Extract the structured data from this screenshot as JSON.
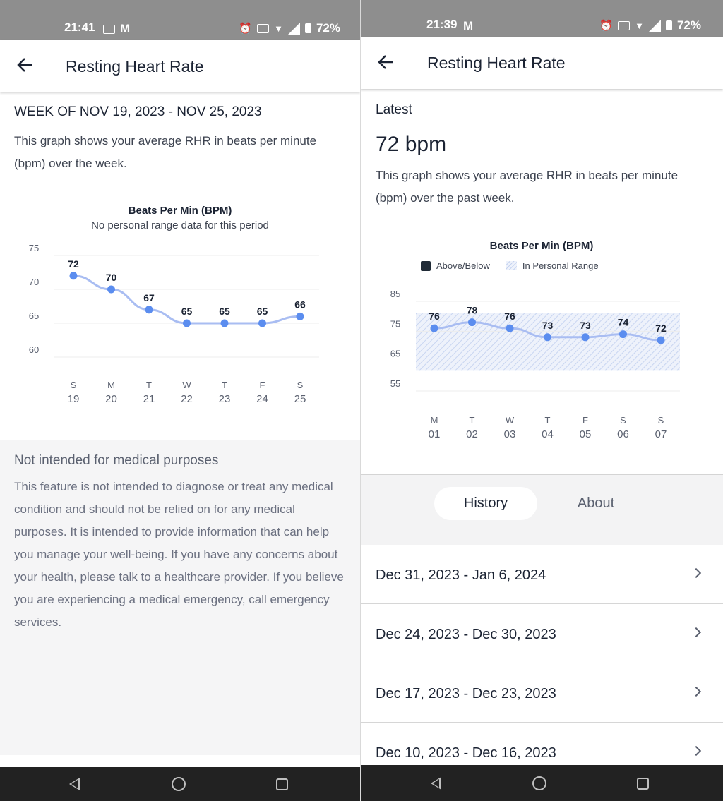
{
  "left": {
    "status": {
      "time": "21:41",
      "battery": "72%"
    },
    "header": {
      "title": "Resting Heart Rate"
    },
    "week_title": "WEEK OF NOV 19, 2023 - NOV 25, 2023",
    "description": "This graph shows your average RHR in beats per minute (bpm) over the week.",
    "chart_data": {
      "type": "line",
      "title": "Beats Per Min (BPM)",
      "subtitle": "No personal range data for this period",
      "categories": [
        "S 19",
        "M 20",
        "T 21",
        "W 22",
        "T 23",
        "F 24",
        "S 25"
      ],
      "day_letters": [
        "S",
        "M",
        "T",
        "W",
        "T",
        "F",
        "S"
      ],
      "day_numbers": [
        "19",
        "20",
        "21",
        "22",
        "23",
        "24",
        "25"
      ],
      "values": [
        72,
        70,
        67,
        65,
        65,
        65,
        66
      ],
      "y_ticks": [
        75,
        70,
        65,
        60
      ],
      "ylim": [
        60,
        75
      ],
      "grid": true,
      "colors": {
        "line": "#a9bdf2",
        "point": "#5b8def"
      }
    },
    "disclaimer": {
      "title": "Not intended for medical purposes",
      "body": "This feature is not intended to diagnose or treat any medical condition and should not be relied on for any medical purposes. It is intended to provide information that can help you manage your well-being. If you have any concerns about your health, please talk to a healthcare provider. If you believe you are experiencing a medical emergency, call emergency services."
    }
  },
  "right": {
    "status": {
      "time": "21:39",
      "battery": "72%"
    },
    "header": {
      "title": "Resting Heart Rate"
    },
    "latest_label": "Latest",
    "latest_value": "72 bpm",
    "description": "This graph shows your average RHR in beats per minute (bpm) over the past week.",
    "chart_data": {
      "type": "line",
      "title": "Beats Per Min (BPM)",
      "legend": [
        "Above/Below",
        "In Personal Range"
      ],
      "categories": [
        "M 01",
        "T 02",
        "W 03",
        "T 04",
        "F 05",
        "S 06",
        "S 07"
      ],
      "day_letters": [
        "M",
        "T",
        "W",
        "T",
        "F",
        "S",
        "S"
      ],
      "day_numbers": [
        "01",
        "02",
        "03",
        "04",
        "05",
        "06",
        "07"
      ],
      "values": [
        76,
        78,
        76,
        73,
        73,
        74,
        72
      ],
      "y_ticks": [
        85,
        75,
        65,
        55
      ],
      "ylim": [
        55,
        85
      ],
      "personal_range": [
        62,
        81
      ],
      "grid": true,
      "colors": {
        "line": "#a9bdf2",
        "point": "#5b8def",
        "range": "#dfe6f6"
      }
    },
    "tabs": {
      "history": "History",
      "about": "About"
    },
    "history": [
      "Dec 31, 2023 - Jan 6, 2024",
      "Dec 24, 2023 - Dec 30, 2023",
      "Dec 17, 2023 - Dec 23, 2023",
      "Dec 10, 2023 - Dec 16, 2023"
    ]
  }
}
